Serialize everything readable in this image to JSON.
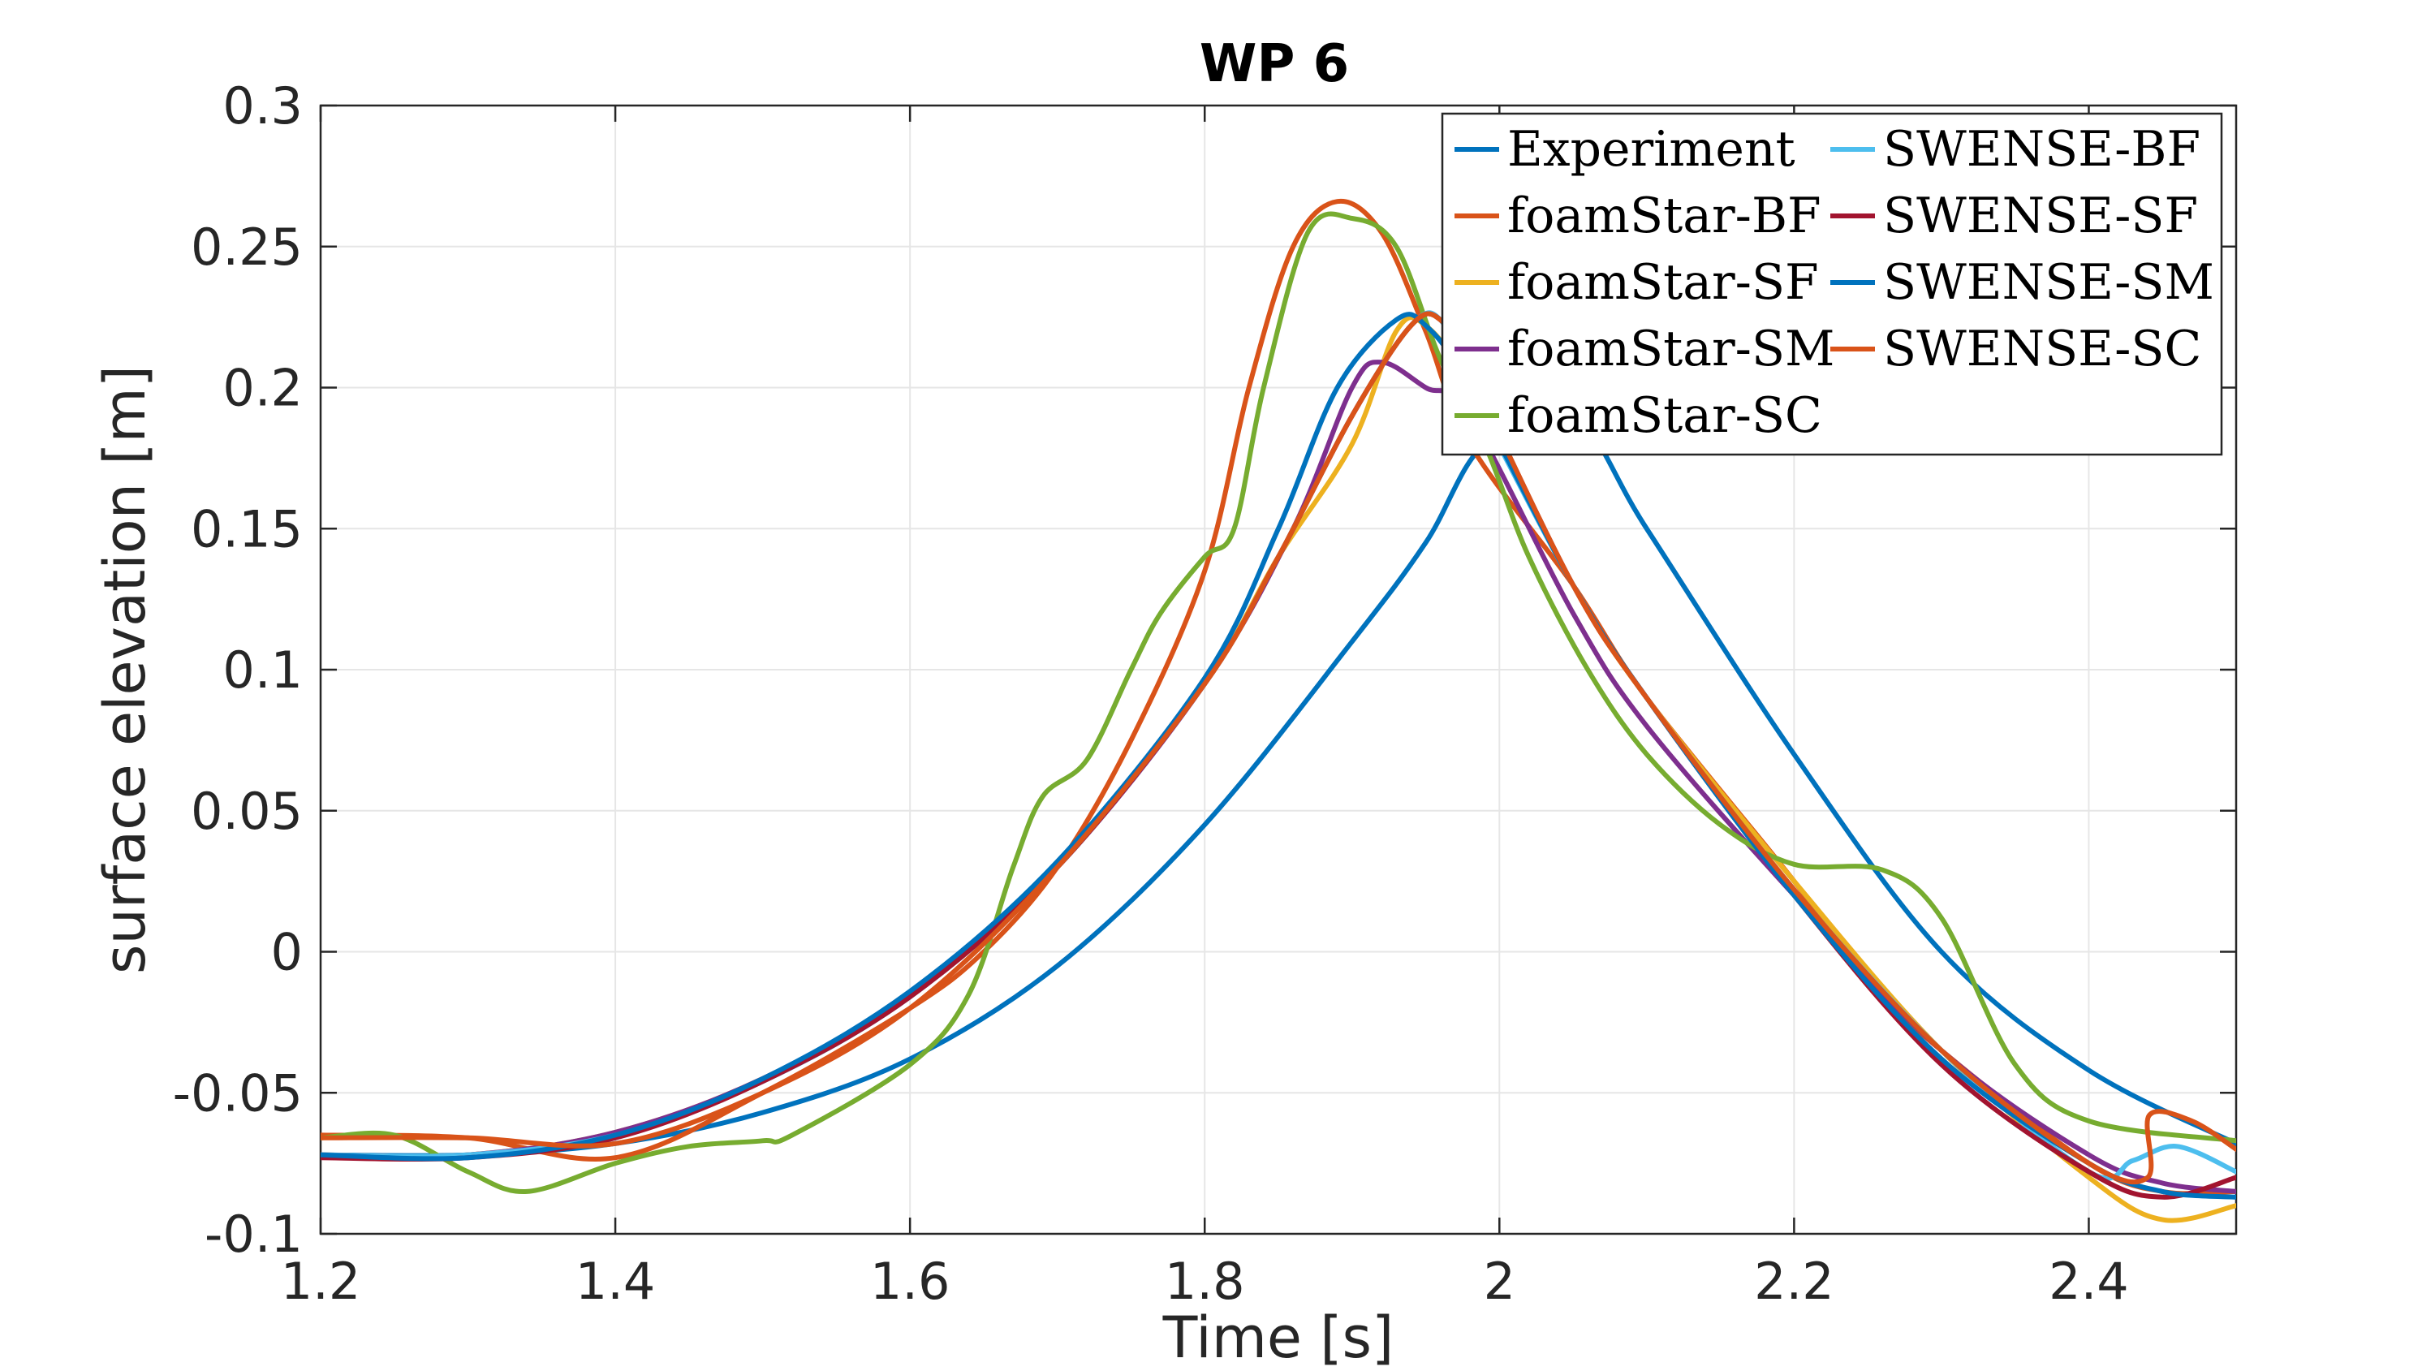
{
  "chart_data": {
    "type": "line",
    "title": "WP 6",
    "xlabel": "Time [s]",
    "ylabel": "surface elevation [m]",
    "xlim": [
      1.2,
      2.5
    ],
    "ylim": [
      -0.1,
      0.3
    ],
    "xticks": [
      1.2,
      1.4,
      1.6,
      1.8,
      2.0,
      2.2,
      2.4
    ],
    "xtick_labels": [
      "1.2",
      "1.4",
      "1.6",
      "1.8",
      "2",
      "2.2",
      "2.4"
    ],
    "yticks": [
      -0.1,
      -0.05,
      0,
      0.05,
      0.1,
      0.15,
      0.2,
      0.25,
      0.3
    ],
    "ytick_labels": [
      "-0.1",
      "-0.05",
      "0",
      "0.05",
      "0.1",
      "0.15",
      "0.2",
      "0.25",
      "0.3"
    ],
    "grid": true,
    "legend_position": "top-right",
    "legend_columns": 2,
    "series": [
      {
        "name": "Experiment",
        "color": "#0072BD",
        "x": [
          1.2,
          1.3,
          1.4,
          1.5,
          1.6,
          1.7,
          1.8,
          1.9,
          1.95,
          1.99,
          2.05,
          2.1,
          2.2,
          2.3,
          2.4,
          2.5
        ],
        "y": [
          -0.072,
          -0.072,
          -0.068,
          -0.057,
          -0.038,
          -0.005,
          0.045,
          0.11,
          0.145,
          0.18,
          0.19,
          0.15,
          0.07,
          0.0,
          -0.042,
          -0.068
        ]
      },
      {
        "name": "foamStar-BF",
        "color": "#D95319",
        "x": [
          1.2,
          1.3,
          1.4,
          1.5,
          1.6,
          1.65,
          1.7,
          1.75,
          1.8,
          1.83,
          1.86,
          1.89,
          1.92,
          1.95,
          1.98,
          2.05,
          2.1,
          2.2,
          2.25,
          2.3,
          2.4,
          2.45,
          2.5
        ],
        "y": [
          -0.065,
          -0.066,
          -0.073,
          -0.05,
          -0.02,
          0.0,
          0.03,
          0.075,
          0.135,
          0.2,
          0.25,
          0.266,
          0.255,
          0.22,
          0.18,
          0.13,
          0.09,
          0.025,
          -0.01,
          -0.035,
          -0.075,
          -0.085,
          -0.085
        ]
      },
      {
        "name": "foamStar-SF",
        "color": "#EDB120",
        "x": [
          1.2,
          1.3,
          1.4,
          1.5,
          1.6,
          1.7,
          1.8,
          1.85,
          1.9,
          1.93,
          1.95,
          1.98,
          2.05,
          2.1,
          2.2,
          2.3,
          2.4,
          2.45,
          2.5
        ],
        "y": [
          -0.072,
          -0.072,
          -0.064,
          -0.045,
          -0.015,
          0.03,
          0.095,
          0.14,
          0.18,
          0.22,
          0.222,
          0.2,
          0.13,
          0.09,
          0.025,
          -0.035,
          -0.08,
          -0.095,
          -0.09
        ]
      },
      {
        "name": "foamStar-SM",
        "color": "#7E2F8E",
        "x": [
          1.2,
          1.3,
          1.4,
          1.5,
          1.6,
          1.7,
          1.8,
          1.86,
          1.9,
          1.92,
          1.95,
          1.98,
          2.05,
          2.1,
          2.2,
          2.3,
          2.4,
          2.45,
          2.5
        ],
        "y": [
          -0.072,
          -0.072,
          -0.064,
          -0.045,
          -0.015,
          0.03,
          0.095,
          0.15,
          0.2,
          0.209,
          0.2,
          0.19,
          0.12,
          0.08,
          0.02,
          -0.035,
          -0.072,
          -0.082,
          -0.085
        ]
      },
      {
        "name": "foamStar-SC",
        "color": "#77AC30",
        "x": [
          1.2,
          1.25,
          1.3,
          1.34,
          1.4,
          1.45,
          1.5,
          1.52,
          1.6,
          1.64,
          1.67,
          1.69,
          1.72,
          1.75,
          1.77,
          1.8,
          1.82,
          1.84,
          1.87,
          1.9,
          1.93,
          1.96,
          1.99,
          2.02,
          2.06,
          2.1,
          2.15,
          2.2,
          2.26,
          2.3,
          2.35,
          2.4,
          2.5
        ],
        "y": [
          -0.066,
          -0.065,
          -0.078,
          -0.085,
          -0.075,
          -0.069,
          -0.067,
          -0.065,
          -0.04,
          -0.015,
          0.03,
          0.055,
          0.068,
          0.1,
          0.12,
          0.14,
          0.15,
          0.2,
          0.255,
          0.26,
          0.25,
          0.21,
          0.18,
          0.14,
          0.1,
          0.07,
          0.045,
          0.031,
          0.029,
          0.012,
          -0.04,
          -0.06,
          -0.067
        ]
      },
      {
        "name": "SWENSE-BF",
        "color": "#4DBEEE",
        "x": [
          1.2,
          1.3,
          1.4,
          1.5,
          1.6,
          1.7,
          1.8,
          1.85,
          1.9,
          1.94,
          1.96,
          1.98,
          2.05,
          2.1,
          2.2,
          2.3,
          2.4,
          2.43,
          2.46,
          2.5
        ],
        "y": [
          -0.072,
          -0.072,
          -0.065,
          -0.046,
          -0.016,
          0.03,
          0.095,
          0.14,
          0.19,
          0.222,
          0.224,
          0.2,
          0.13,
          0.09,
          0.022,
          -0.035,
          -0.078,
          -0.074,
          -0.069,
          -0.078
        ]
      },
      {
        "name": "SWENSE-SF",
        "color": "#A2142F",
        "x": [
          1.2,
          1.3,
          1.4,
          1.5,
          1.6,
          1.7,
          1.8,
          1.85,
          1.9,
          1.94,
          1.96,
          1.98,
          2.05,
          2.1,
          2.2,
          2.3,
          2.4,
          2.45,
          2.5
        ],
        "y": [
          -0.073,
          -0.073,
          -0.066,
          -0.046,
          -0.016,
          0.03,
          0.095,
          0.14,
          0.19,
          0.222,
          0.224,
          0.205,
          0.13,
          0.09,
          0.02,
          -0.04,
          -0.078,
          -0.087,
          -0.08
        ]
      },
      {
        "name": "SWENSE-SM",
        "color": "#0072BD",
        "x": [
          1.2,
          1.3,
          1.4,
          1.5,
          1.6,
          1.7,
          1.8,
          1.85,
          1.89,
          1.93,
          1.95,
          1.98,
          2.05,
          2.1,
          2.2,
          2.3,
          2.4,
          2.45,
          2.5
        ],
        "y": [
          -0.072,
          -0.073,
          -0.065,
          -0.045,
          -0.014,
          0.032,
          0.097,
          0.15,
          0.2,
          0.224,
          0.222,
          0.2,
          0.13,
          0.09,
          0.02,
          -0.038,
          -0.075,
          -0.085,
          -0.087
        ]
      },
      {
        "name": "SWENSE-SC",
        "color": "#D95319",
        "x": [
          1.2,
          1.3,
          1.4,
          1.5,
          1.6,
          1.7,
          1.8,
          1.85,
          1.9,
          1.94,
          1.96,
          1.98,
          2.05,
          2.1,
          2.2,
          2.3,
          2.4,
          2.44,
          2.441,
          2.47,
          2.5
        ],
        "y": [
          -0.066,
          -0.066,
          -0.068,
          -0.05,
          -0.02,
          0.03,
          0.095,
          0.14,
          0.19,
          0.222,
          0.224,
          0.205,
          0.13,
          0.09,
          0.022,
          -0.035,
          -0.075,
          -0.08,
          -0.058,
          -0.06,
          -0.07
        ]
      }
    ]
  }
}
